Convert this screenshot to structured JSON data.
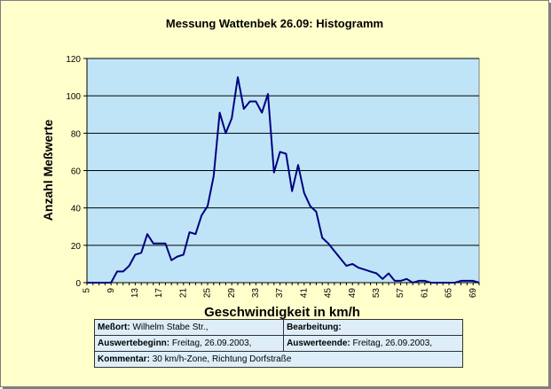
{
  "chart_data": {
    "type": "line",
    "title": "Messung Wattenbek 26.09: Histogramm",
    "xlabel": "Geschwindigkeit in km/h",
    "ylabel": "Anzahl Meßwerte",
    "xlim": [
      5,
      70
    ],
    "ylim": [
      0,
      120
    ],
    "yticks": [
      0,
      20,
      40,
      60,
      80,
      100,
      120
    ],
    "xticks": [
      5,
      9,
      13,
      17,
      21,
      25,
      29,
      33,
      37,
      41,
      45,
      49,
      53,
      57,
      61,
      65,
      69
    ],
    "grid": true,
    "legend": "none",
    "plot_background": "#bfe4f7",
    "line_color": "#000080",
    "x": [
      5,
      6,
      7,
      8,
      9,
      10,
      11,
      12,
      13,
      14,
      15,
      16,
      17,
      18,
      19,
      20,
      21,
      22,
      23,
      24,
      25,
      26,
      27,
      28,
      29,
      30,
      31,
      32,
      33,
      34,
      35,
      36,
      37,
      38,
      39,
      40,
      41,
      42,
      43,
      44,
      45,
      46,
      47,
      48,
      49,
      50,
      51,
      52,
      53,
      54,
      55,
      56,
      57,
      58,
      59,
      60,
      61,
      62,
      63,
      64,
      65,
      66,
      67,
      68,
      69,
      70
    ],
    "y": [
      0,
      0,
      0,
      0,
      0,
      6,
      6,
      9,
      15,
      16,
      26,
      21,
      21,
      21,
      12,
      14,
      15,
      27,
      26,
      36,
      41,
      57,
      91,
      80,
      88,
      110,
      93,
      97,
      97,
      91,
      101,
      59,
      70,
      69,
      49,
      63,
      48,
      41,
      38,
      24,
      21,
      17,
      13,
      9,
      10,
      8,
      7,
      6,
      5,
      2,
      5,
      1,
      1,
      2,
      0,
      1,
      1,
      0,
      0,
      0,
      0,
      0,
      1,
      1,
      1,
      0
    ]
  },
  "info_table": {
    "messort_label": "Meßort:",
    "messort_value": "Wilhelm Stabe Str.,",
    "bearbeitung_label": "Bearbeitung:",
    "bearbeitung_value": "",
    "beginn_label": "Auswertebeginn:",
    "beginn_value": "Freitag, 26.09.2003,",
    "ende_label": "Auswerteende:",
    "ende_value": "Freitag, 26.09.2003,",
    "kommentar_label": "Kommentar:",
    "kommentar_value": "30 km/h-Zone, Richtung Dorfstraße"
  }
}
